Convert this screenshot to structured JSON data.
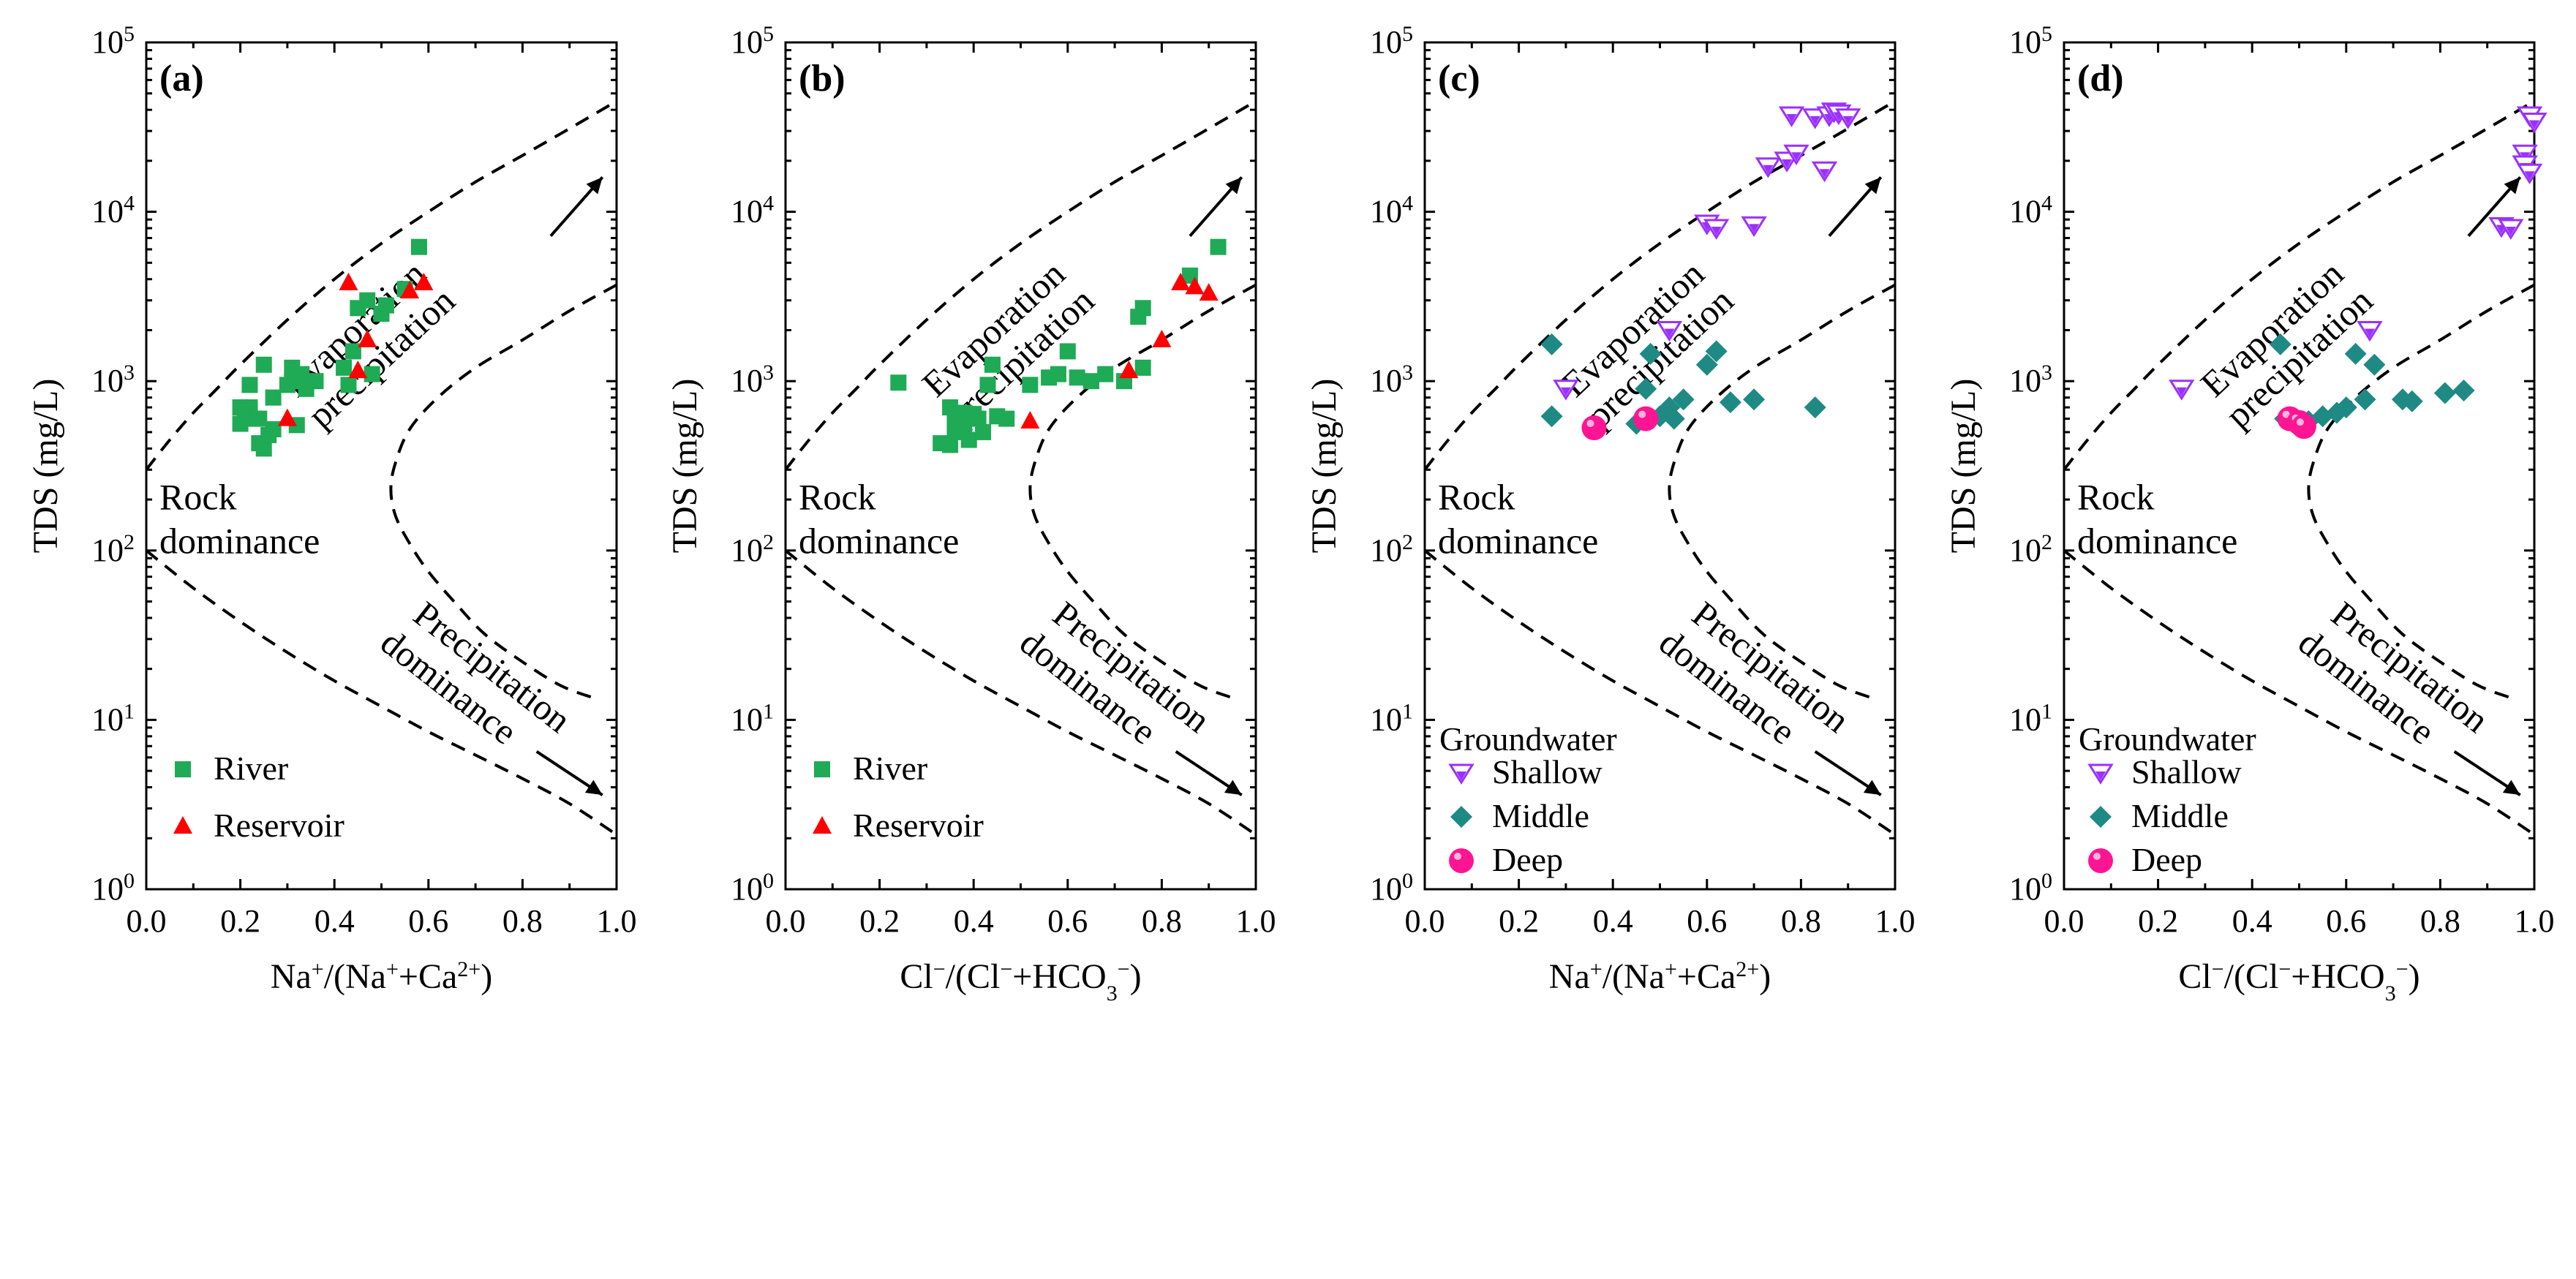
{
  "chart_data": [
    {
      "panel": "(a)",
      "type": "scatter",
      "xlabel": "Na+/(Na++Ca2+)",
      "ylabel": "TDS (mg/L)",
      "xlim": [
        0,
        1
      ],
      "ylim": [
        1,
        100000
      ],
      "yscale": "log",
      "xticks": [
        "0.0",
        "0.2",
        "0.4",
        "0.6",
        "0.8",
        "1.0"
      ],
      "yticks": [
        "10^0",
        "10^1",
        "10^2",
        "10^3",
        "10^4",
        "10^5"
      ],
      "legend": {
        "position": "bottom-left",
        "title": ""
      },
      "series": [
        {
          "name": "River",
          "marker": "square",
          "color": "#1faa55",
          "x": [
            0.2,
            0.21,
            0.22,
            0.23,
            0.24,
            0.25,
            0.25,
            0.26,
            0.27,
            0.27,
            0.3,
            0.31,
            0.31,
            0.32,
            0.33,
            0.34,
            0.36,
            0.42,
            0.43,
            0.44,
            0.45,
            0.47,
            0.48,
            0.5,
            0.51,
            0.55,
            0.58,
            0.2,
            0.22,
            0.24
          ],
          "y": [
            560,
            640,
            700,
            600,
            430,
            400,
            1250,
            480,
            800,
            520,
            950,
            1000,
            1200,
            550,
            1100,
            900,
            1000,
            1200,
            950,
            1500,
            2700,
            3000,
            1100,
            2500,
            2800,
            3500,
            6200,
            700,
            950,
            600
          ]
        },
        {
          "name": "Reservoir",
          "marker": "triangle",
          "color": "#ff0000",
          "x": [
            0.3,
            0.43,
            0.45,
            0.47,
            0.56,
            0.59
          ],
          "y": [
            600,
            3800,
            1150,
            1750,
            3400,
            3800
          ]
        }
      ],
      "annotations": [
        "Evaporation",
        "precipitation",
        "Rock",
        "dominance",
        "Precipitation",
        "dominance"
      ]
    },
    {
      "panel": "(b)",
      "type": "scatter",
      "xlabel": "Cl−/(Cl−+HCO3−)",
      "ylabel": "TDS (mg/L)",
      "xlim": [
        0,
        1
      ],
      "ylim": [
        1,
        100000
      ],
      "yscale": "log",
      "xticks": [
        "0.0",
        "0.2",
        "0.4",
        "0.6",
        "0.8",
        "1.0"
      ],
      "yticks": [
        "10^0",
        "10^1",
        "10^2",
        "10^3",
        "10^4",
        "10^5"
      ],
      "legend": {
        "position": "bottom-left",
        "title": ""
      },
      "series": [
        {
          "name": "River",
          "marker": "square",
          "color": "#1faa55",
          "x": [
            0.24,
            0.33,
            0.35,
            0.35,
            0.36,
            0.37,
            0.38,
            0.39,
            0.4,
            0.41,
            0.42,
            0.43,
            0.44,
            0.45,
            0.47,
            0.52,
            0.56,
            0.58,
            0.6,
            0.62,
            0.65,
            0.68,
            0.72,
            0.75,
            0.76,
            0.76,
            0.86,
            0.92,
            0.36,
            0.38
          ],
          "y": [
            980,
            430,
            700,
            420,
            600,
            500,
            550,
            450,
            640,
            600,
            500,
            950,
            1250,
            620,
            600,
            950,
            1050,
            1100,
            1500,
            1050,
            1000,
            1100,
            1000,
            2400,
            2700,
            1200,
            4200,
            6200,
            520,
            650
          ]
        },
        {
          "name": "Reservoir",
          "marker": "triangle",
          "color": "#ff0000",
          "x": [
            0.52,
            0.73,
            0.8,
            0.84,
            0.87,
            0.9
          ],
          "y": [
            580,
            1150,
            1750,
            3800,
            3600,
            3300
          ]
        }
      ],
      "annotations": [
        "Evaporation",
        "precipitation",
        "Rock",
        "dominance",
        "Precipitation",
        "dominance"
      ]
    },
    {
      "panel": "(c)",
      "type": "scatter",
      "xlabel": "Na+/(Na++Ca2+)",
      "ylabel": "TDS (mg/L)",
      "xlim": [
        0,
        1
      ],
      "ylim": [
        1,
        100000
      ],
      "yscale": "log",
      "xticks": [
        "0.0",
        "0.2",
        "0.4",
        "0.6",
        "0.8",
        "1.0"
      ],
      "yticks": [
        "10^0",
        "10^1",
        "10^2",
        "10^3",
        "10^4",
        "10^5"
      ],
      "legend": {
        "position": "bottom-left",
        "title": "Groundwater"
      },
      "series": [
        {
          "name": "Shallow",
          "marker": "triangle-down",
          "color": "#9b30ff",
          "x": [
            0.3,
            0.52,
            0.6,
            0.62,
            0.7,
            0.73,
            0.77,
            0.78,
            0.79,
            0.83,
            0.85,
            0.86,
            0.87,
            0.88,
            0.9
          ],
          "y": [
            900,
            2000,
            8500,
            8000,
            8300,
            18500,
            20000,
            37000,
            22000,
            36000,
            17500,
            37000,
            39000,
            38000,
            36000
          ]
        },
        {
          "name": "Middle",
          "marker": "diamond",
          "color": "#1f8a84",
          "x": [
            0.27,
            0.27,
            0.45,
            0.47,
            0.48,
            0.5,
            0.52,
            0.53,
            0.55,
            0.6,
            0.62,
            0.65,
            0.7,
            0.83
          ],
          "y": [
            1650,
            620,
            560,
            900,
            1450,
            620,
            700,
            600,
            780,
            1250,
            1500,
            750,
            780,
            700
          ]
        },
        {
          "name": "Deep",
          "marker": "circle",
          "color": "#ff1493",
          "x": [
            0.36,
            0.47
          ],
          "y": [
            530,
            600
          ]
        }
      ],
      "annotations": [
        "Evaporation",
        "precipitation",
        "Rock",
        "dominance",
        "Precipitation",
        "dominance"
      ]
    },
    {
      "panel": "(d)",
      "type": "scatter",
      "xlabel": "Cl−/(Cl−+HCO3−)",
      "ylabel": "TDS (mg/L)",
      "xlim": [
        0,
        1
      ],
      "ylim": [
        1,
        100000
      ],
      "yscale": "log",
      "xticks": [
        "0.0",
        "0.2",
        "0.4",
        "0.6",
        "0.8",
        "1.0"
      ],
      "yticks": [
        "10^0",
        "10^1",
        "10^2",
        "10^3",
        "10^4",
        "10^5"
      ],
      "legend": {
        "position": "bottom-left",
        "title": "Groundwater"
      },
      "series": [
        {
          "name": "Shallow",
          "marker": "triangle-down",
          "color": "#9b30ff",
          "x": [
            0.25,
            0.65,
            0.93,
            0.95,
            0.98,
            0.98,
            0.99,
            0.99,
            1.0
          ],
          "y": [
            900,
            2000,
            8200,
            8000,
            22000,
            19000,
            17000,
            37000,
            34000
          ]
        },
        {
          "name": "Middle",
          "marker": "diamond",
          "color": "#1f8a84",
          "x": [
            0.46,
            0.47,
            0.49,
            0.52,
            0.55,
            0.58,
            0.6,
            0.62,
            0.64,
            0.66,
            0.72,
            0.74,
            0.81,
            0.85
          ],
          "y": [
            1650,
            600,
            560,
            580,
            620,
            650,
            700,
            1450,
            780,
            1250,
            780,
            760,
            850,
            880
          ]
        },
        {
          "name": "Deep",
          "marker": "circle",
          "color": "#ff1493",
          "x": [
            0.48,
            0.5,
            0.51
          ],
          "y": [
            600,
            570,
            540
          ]
        }
      ],
      "annotations": [
        "Evaporation",
        "precipitation",
        "Rock",
        "dominance",
        "Precipitation",
        "dominance"
      ]
    }
  ]
}
